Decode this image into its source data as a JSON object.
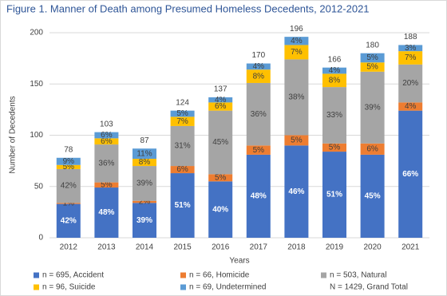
{
  "chart_data": {
    "type": "stacked_bar",
    "title": "Figure 1. Manner of Death among Presumed Homeless Decedents, 2012-2021",
    "x_label": "Years",
    "y_label": "Number of Decedents",
    "categories": [
      "2012",
      "2013",
      "2014",
      "2015",
      "2016",
      "2017",
      "2018",
      "2019",
      "2020",
      "2021"
    ],
    "totals": [
      78,
      103,
      87,
      124,
      137,
      170,
      196,
      166,
      180,
      188
    ],
    "series": [
      {
        "name": "n = 695, Accident",
        "color": "#4472c4",
        "values": [
          33,
          49,
          34,
          63,
          55,
          81,
          90,
          84,
          81,
          124
        ],
        "value_labels": [
          "42%",
          "48%",
          "39%",
          "51%",
          "40%",
          "48%",
          "46%",
          "51%",
          "45%",
          "66%"
        ]
      },
      {
        "name": "n = 66, Homicide",
        "color": "#ed7d31",
        "values": [
          1,
          5,
          2,
          7,
          7,
          9,
          10,
          8,
          11,
          8
        ],
        "value_labels": [
          "1%",
          "5%",
          "2%",
          "6%",
          "5%",
          "5%",
          "5%",
          "5%",
          "6%",
          "4%"
        ]
      },
      {
        "name": "n = 503, Natural",
        "color": "#a5a5a5",
        "values": [
          33,
          37,
          34,
          39,
          62,
          61,
          74,
          55,
          70,
          37
        ],
        "value_labels": [
          "42%",
          "36%",
          "39%",
          "31%",
          "45%",
          "36%",
          "38%",
          "33%",
          "39%",
          "20%"
        ]
      },
      {
        "name": "n = 96, Suicide",
        "color": "#ffc000",
        "values": [
          4,
          6,
          7,
          9,
          8,
          13,
          14,
          13,
          9,
          13
        ],
        "value_labels": [
          "5%",
          "6%",
          "8%",
          "7%",
          "6%",
          "8%",
          "7%",
          "8%",
          "5%",
          "7%"
        ]
      },
      {
        "name": "n = 69, Undetermined",
        "color": "#5b9bd5",
        "values": [
          7,
          6,
          10,
          6,
          5,
          6,
          8,
          6,
          9,
          6
        ],
        "value_labels": [
          "9%",
          "6%",
          "11%",
          "5%",
          "4%",
          "4%",
          "4%",
          "4%",
          "5%",
          "3%"
        ]
      }
    ],
    "legend_note": "N = 1429, Grand Total",
    "ylim": [
      0,
      200
    ],
    "yticks": [
      0,
      50,
      100,
      150,
      200
    ],
    "grid": true
  }
}
